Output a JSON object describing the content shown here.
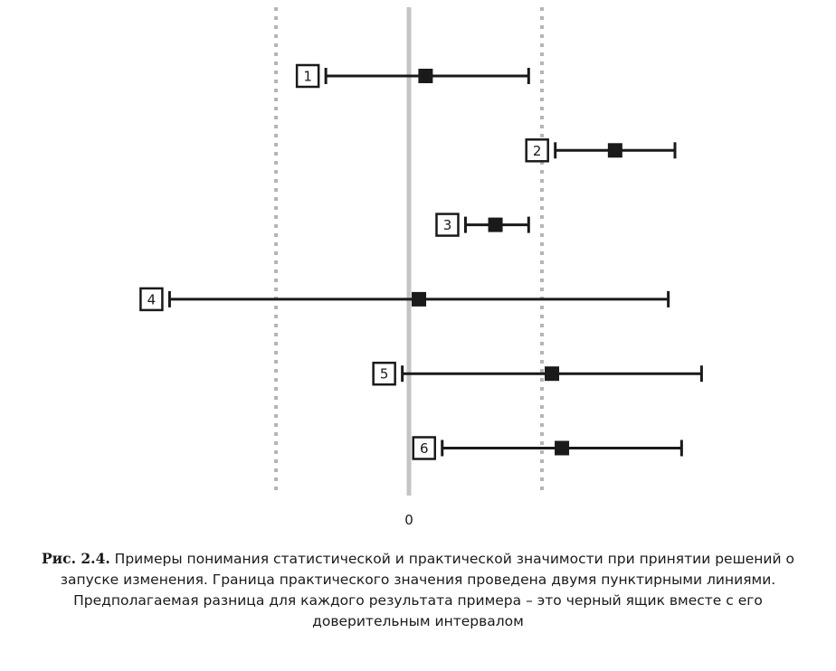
{
  "chart_data": {
    "type": "interval",
    "x_tick_label": "0",
    "practical_bounds": [
      -2,
      2
    ],
    "results": [
      {
        "label": "1",
        "estimate": 0.25,
        "lower": -1.25,
        "upper": 1.8
      },
      {
        "label": "2",
        "estimate": 3.1,
        "lower": 2.2,
        "upper": 4.0
      },
      {
        "label": "3",
        "estimate": 1.3,
        "lower": 0.85,
        "upper": 1.8
      },
      {
        "label": "4",
        "estimate": 0.15,
        "lower": -3.6,
        "upper": 3.9
      },
      {
        "label": "5",
        "estimate": 2.15,
        "lower": -0.1,
        "upper": 4.4
      },
      {
        "label": "6",
        "estimate": 2.3,
        "lower": 0.5,
        "upper": 4.1
      }
    ]
  },
  "caption": {
    "figure_label": "Рис. 2.4.",
    "text": " Примеры понимания статистической и практической значимости при принятии решений о запуске изменения. Граница практического значения проведена двумя пунктирными линиями. Предполагаемая разница для каждого результата примера – это черный ящик вместе с его доверительным интервалом"
  }
}
